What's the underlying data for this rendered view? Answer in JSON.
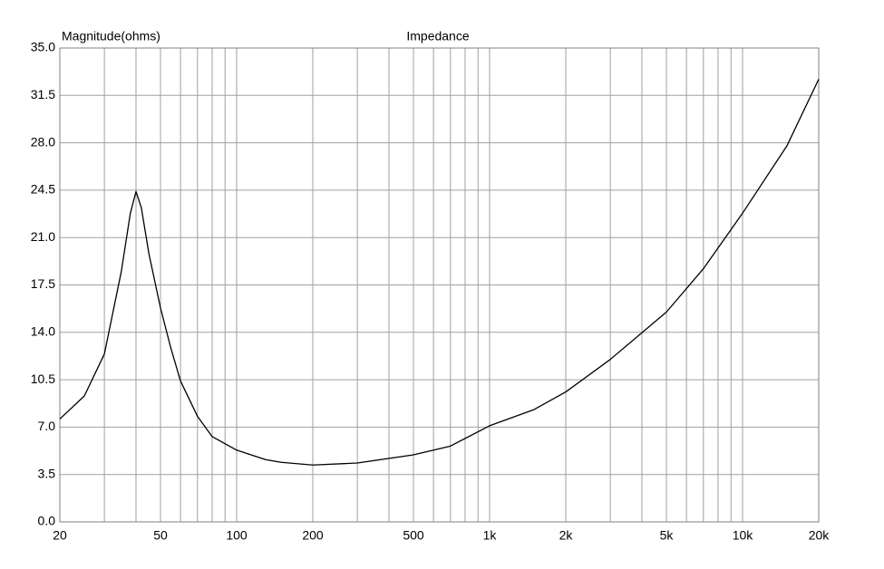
{
  "chart_data": {
    "type": "line",
    "title": "Impedance",
    "y_label": "Magnitude(ohms)",
    "log_x": true,
    "grid": true,
    "color": "#000000",
    "x": [
      20,
      25,
      30,
      35,
      38,
      40,
      42,
      45,
      50,
      55,
      60,
      70,
      80,
      100,
      130,
      150,
      200,
      300,
      500,
      700,
      1000,
      1500,
      2000,
      3000,
      5000,
      7000,
      10000,
      15000,
      20000
    ],
    "values": [
      7.6,
      9.3,
      12.4,
      18.5,
      22.8,
      24.4,
      23.2,
      19.8,
      15.8,
      12.8,
      10.4,
      7.8,
      6.3,
      5.3,
      4.6,
      4.4,
      4.2,
      4.35,
      4.95,
      5.6,
      7.1,
      8.3,
      9.6,
      12.0,
      15.5,
      18.7,
      22.8,
      27.8,
      32.7
    ],
    "xlim": [
      20,
      20000
    ],
    "xticks": [
      20,
      50,
      100,
      200,
      500,
      {
        "value": 1000,
        "label": "1k"
      },
      {
        "value": 2000,
        "label": "2k"
      },
      {
        "value": 5000,
        "label": "5k"
      },
      {
        "value": 10000,
        "label": "10k"
      },
      {
        "value": 20000,
        "label": "20k"
      }
    ],
    "minor_xticks": [
      30,
      40,
      60,
      70,
      80,
      90,
      300,
      400,
      600,
      700,
      800,
      900,
      3000,
      4000,
      6000,
      7000,
      8000,
      9000
    ],
    "ylim": [
      0,
      35
    ],
    "yticks": [
      {
        "value": 0,
        "label": "0.0"
      },
      3.5,
      {
        "value": 7,
        "label": "7.0"
      },
      10.5,
      {
        "value": 14,
        "label": "14.0"
      },
      17.5,
      {
        "value": 21,
        "label": "21.0"
      },
      24.5,
      {
        "value": 28,
        "label": "28.0"
      },
      31.5,
      {
        "value": 35,
        "label": "35.0"
      }
    ]
  }
}
